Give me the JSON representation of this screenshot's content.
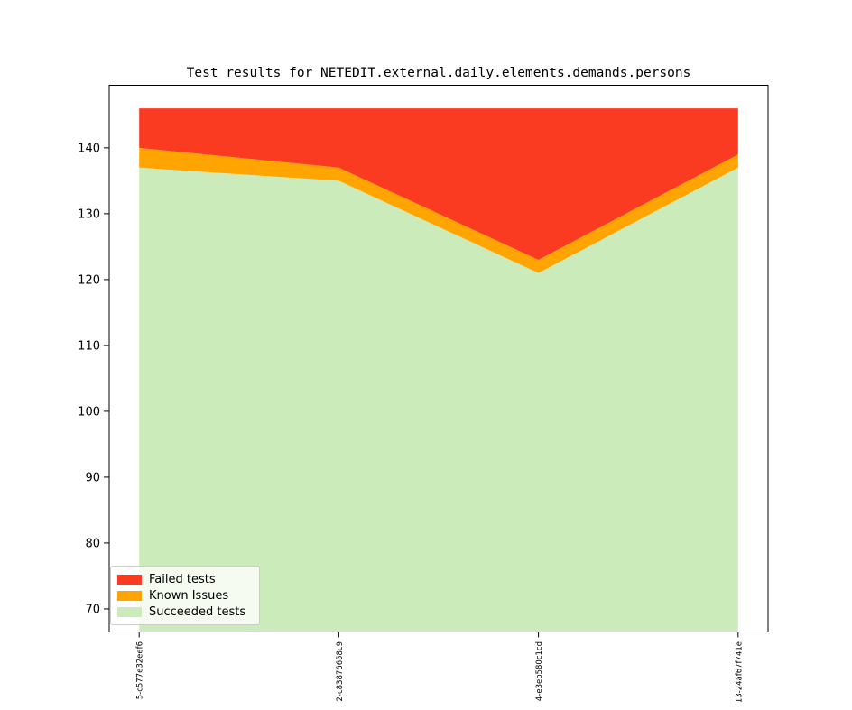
{
  "title": "Test results for NETEDIT.external.daily.elements.demands.persons",
  "chart_data": {
    "type": "area",
    "stacked": true,
    "title": "Test results for NETEDIT.external.daily.elements.demands.persons",
    "categories": [
      "5-c577e32eef6",
      "2-c83876658c9",
      "4-e3eb580c1cd",
      "13-24af67f741e"
    ],
    "series": [
      {
        "name": "Failed tests",
        "color": "#fb3a22",
        "values": [
          6,
          9,
          23,
          7
        ]
      },
      {
        "name": "Known Issues",
        "color": "#ffa400",
        "values": [
          3,
          2,
          2,
          2
        ]
      },
      {
        "name": "Succeeded tests",
        "color": "#cbecba",
        "values": [
          137,
          135,
          121,
          137
        ]
      }
    ],
    "stack_order_bottom_to_top": [
      "Succeeded tests",
      "Known Issues",
      "Failed tests"
    ],
    "totals": [
      146,
      146,
      146,
      146
    ],
    "xlabel": "",
    "ylabel": "",
    "ylim": [
      66.5,
      149.5
    ],
    "yticks": [
      70,
      80,
      90,
      100,
      110,
      120,
      130,
      140
    ],
    "x_tick_rotation_deg": 90,
    "grid": false,
    "legend_position": "lower left",
    "frame_color": "#000000",
    "background_color": "#ffffff"
  }
}
